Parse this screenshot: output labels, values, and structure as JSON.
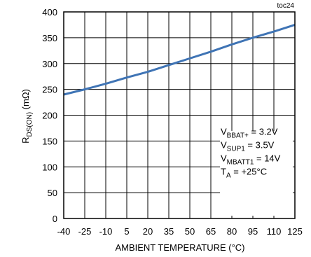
{
  "chart_data": {
    "type": "line",
    "figure_tag": "toc24",
    "xlabel": "AMBIENT TEMPERATURE (°C)",
    "ylabel_main": "R",
    "ylabel_sub": "DS(ON)",
    "ylabel_unit": " (mΩ)",
    "xlim": [
      -40,
      125
    ],
    "ylim": [
      0,
      400
    ],
    "x_ticks": [
      -40,
      -25,
      -10,
      5,
      20,
      35,
      50,
      65,
      80,
      95,
      110,
      125
    ],
    "y_ticks": [
      0,
      50,
      100,
      150,
      200,
      250,
      300,
      350,
      400
    ],
    "grid": true,
    "series": [
      {
        "color": "#3f74b5",
        "x": [
          -40,
          -25,
          -10,
          5,
          20,
          35,
          50,
          65,
          80,
          95,
          110,
          125
        ],
        "y": [
          240,
          250,
          261,
          273,
          284,
          297,
          310,
          323,
          337,
          350,
          362,
          375
        ]
      }
    ],
    "annotations": [
      {
        "main": "V",
        "sub": "BBAT+",
        "rest": " = 3.2V"
      },
      {
        "main": "V",
        "sub": "SUP1",
        "rest": " = 3.5V"
      },
      {
        "main": "V",
        "sub": "MBATT1",
        "rest": " = 14V"
      },
      {
        "main": "T",
        "sub": "A",
        "rest": " = +25°C"
      }
    ]
  }
}
